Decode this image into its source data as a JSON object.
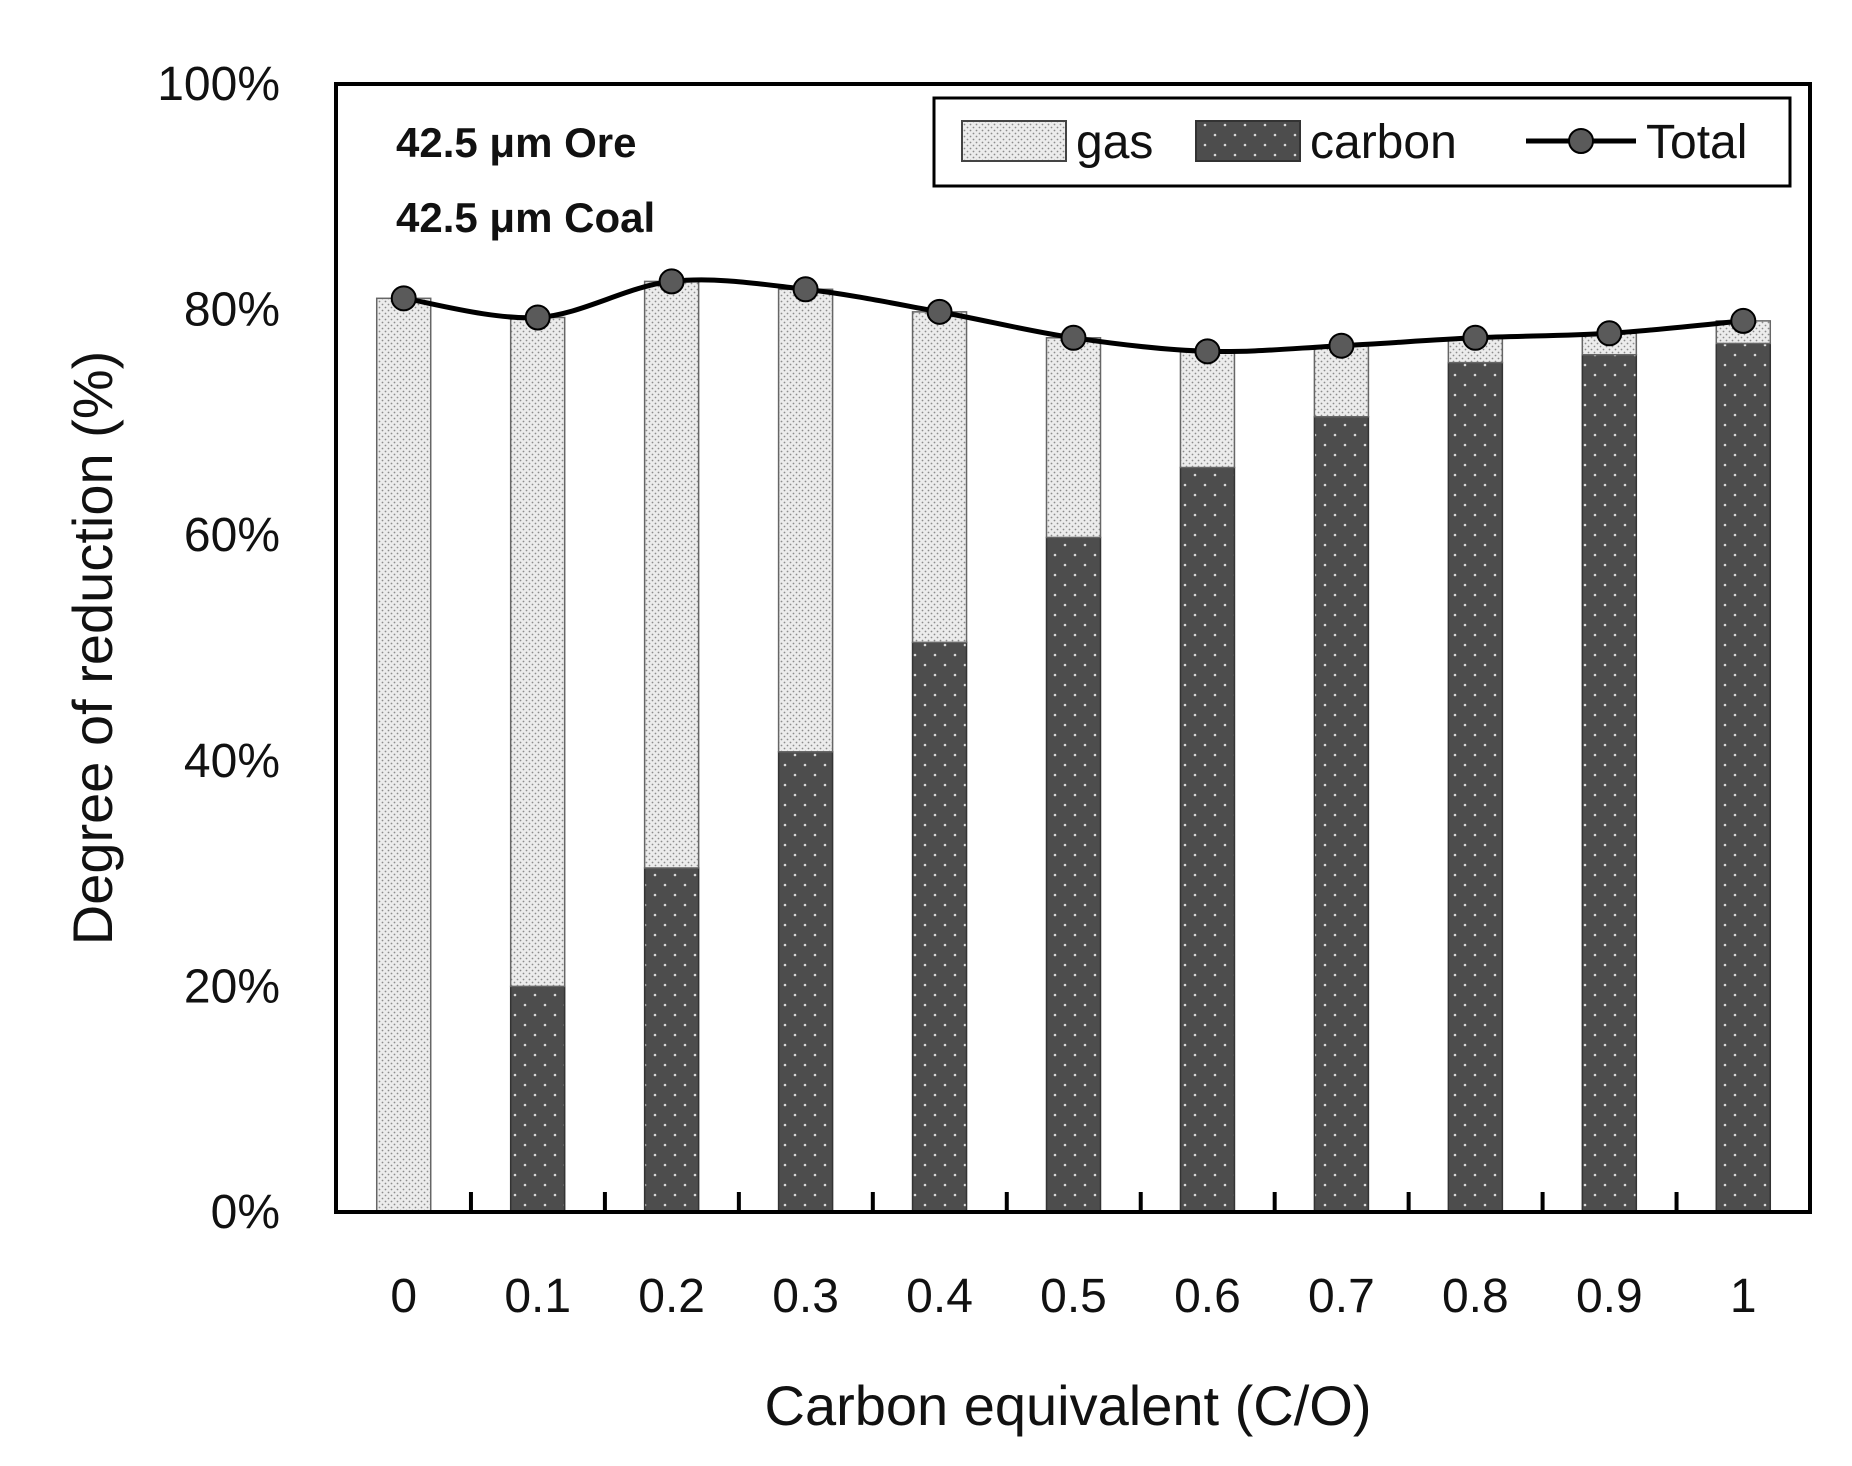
{
  "chart_data": {
    "type": "bar",
    "stacked": true,
    "title": "",
    "xlabel": "Carbon equivalent (C/O)",
    "ylabel": "Degree of reduction (%)",
    "ylim": [
      0,
      100
    ],
    "y_ticks": [
      "0%",
      "20%",
      "40%",
      "60%",
      "80%",
      "100%"
    ],
    "y_tick_values": [
      0,
      20,
      40,
      60,
      80,
      100
    ],
    "categories": [
      "0",
      "0.1",
      "0.2",
      "0.3",
      "0.4",
      "0.5",
      "0.6",
      "0.7",
      "0.8",
      "0.9",
      "1"
    ],
    "series": [
      {
        "name": "carbon",
        "kind": "bar",
        "values": [
          0,
          20,
          30.5,
          40.8,
          50.5,
          59.8,
          66,
          70.5,
          75.3,
          76,
          77
        ]
      },
      {
        "name": "gas",
        "kind": "bar",
        "values": [
          81,
          59.3,
          52,
          41,
          29.3,
          17.7,
          10.3,
          6.3,
          2.2,
          1.9,
          2
        ]
      },
      {
        "name": "Total",
        "kind": "line",
        "values": [
          81,
          79.3,
          82.5,
          81.8,
          79.8,
          77.5,
          76.3,
          76.8,
          77.5,
          77.9,
          79
        ]
      }
    ],
    "legend": {
      "position": "top-right",
      "entries": [
        "gas",
        "carbon",
        "Total"
      ]
    },
    "annotations": [
      "42.5 μm Ore",
      "42.5 μm Coal"
    ],
    "colors": {
      "carbon": "#4d4d4d",
      "gas": "#ececec",
      "line": "#000000",
      "marker": "#5a5a5a"
    }
  }
}
